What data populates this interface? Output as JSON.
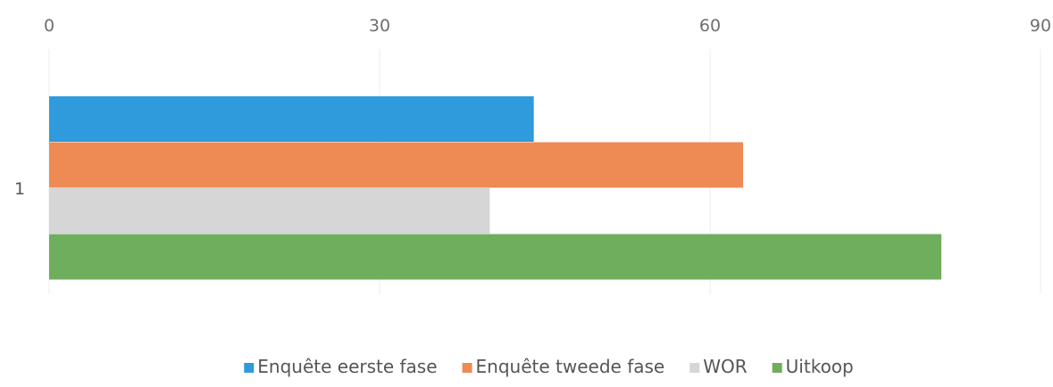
{
  "chart_data": {
    "type": "bar",
    "orientation": "horizontal",
    "categories": [
      "1"
    ],
    "series": [
      {
        "name": "Enquête eerste fase",
        "values": [
          44
        ],
        "color": "#2f9bdc"
      },
      {
        "name": "Enquête tweede fase",
        "values": [
          63
        ],
        "color": "#ee8a54"
      },
      {
        "name": "WOR",
        "values": [
          40
        ],
        "color": "#d6d6d6"
      },
      {
        "name": "Uitkoop",
        "values": [
          81
        ],
        "color": "#6fae5c"
      }
    ],
    "xticks": [
      "0",
      "30",
      "60",
      "90"
    ],
    "xlim": [
      0,
      90
    ],
    "x_axis_position": "top",
    "grid": true,
    "legend": "bottom",
    "title": "",
    "xlabel": "",
    "ylabel": ""
  }
}
